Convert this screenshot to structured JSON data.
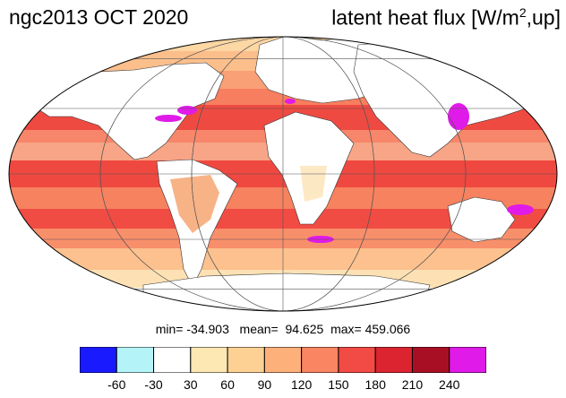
{
  "header": {
    "left_title": "ngc2013 OCT 2020",
    "right_title_prefix": "latent heat flux [W/m",
    "right_title_sup": "2",
    "right_title_suffix": ",up]"
  },
  "stats": {
    "text": "min= -34.903   mean=  94.625  max= 459.066"
  },
  "colorbar": {
    "colors": [
      "#1a1aff",
      "#b4f4f8",
      "#ffffff",
      "#fde8b4",
      "#fdd094",
      "#fdb07a",
      "#f98562",
      "#f24a44",
      "#dc2430",
      "#a80f25",
      "#e01ae8"
    ],
    "labels": [
      "-60",
      "-30",
      "30",
      "60",
      "90",
      "120",
      "150",
      "180",
      "210",
      "240"
    ]
  },
  "map": {
    "projection": "mollweide",
    "background_color": "#ffffff",
    "land_color": "#ffffff",
    "gridlines": true
  }
}
